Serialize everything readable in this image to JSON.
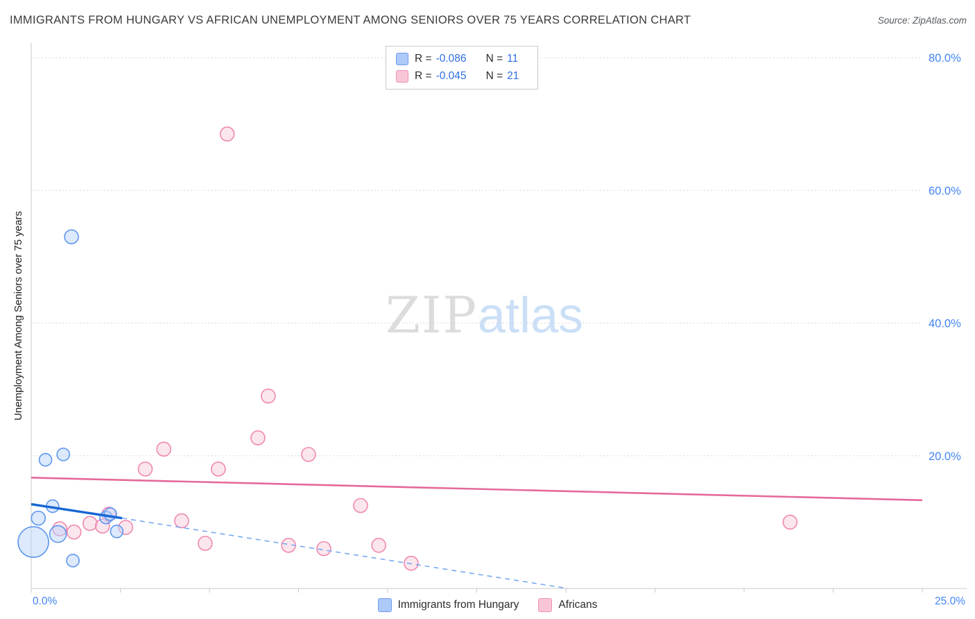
{
  "header": {
    "source": "Source: ZipAtlas.com"
  },
  "watermark": {
    "part1": "ZIP",
    "part2": "atlas"
  },
  "stats_labels": {
    "r": "R =",
    "n": "N ="
  },
  "chart_data": {
    "type": "scatter",
    "title": "IMMIGRANTS FROM HUNGARY VS AFRICAN UNEMPLOYMENT AMONG SENIORS OVER 75 YEARS CORRELATION CHART",
    "xlabel": "",
    "ylabel": "Unemployment Among Seniors over 75 years",
    "xlim": [
      0,
      0.25
    ],
    "ylim": [
      0,
      0.82
    ],
    "grid": true,
    "legend_position": "bottom-center",
    "axis_label_color": "#4285f4",
    "x_tick_labels": [
      "0.0%",
      "25.0%"
    ],
    "y_ticks": [
      0.2,
      0.4,
      0.6,
      0.8
    ],
    "y_tick_labels": [
      "20.0%",
      "40.0%",
      "60.0%",
      "80.0%"
    ],
    "x_minor_tick_count": 11,
    "series": [
      {
        "name": "Africans",
        "r": "-0.045",
        "n": "21",
        "fill": "#f9cddd",
        "stroke": "#ef88b0",
        "trend_color": "#e5699b",
        "points": [
          [
            0.008,
            0.09,
            10
          ],
          [
            0.012,
            0.085,
            10
          ],
          [
            0.0165,
            0.098,
            10
          ],
          [
            0.02,
            0.094,
            10
          ],
          [
            0.0218,
            0.112,
            10
          ],
          [
            0.0265,
            0.092,
            10
          ],
          [
            0.032,
            0.18,
            10
          ],
          [
            0.0372,
            0.21,
            10
          ],
          [
            0.0422,
            0.102,
            10
          ],
          [
            0.0488,
            0.068,
            10
          ],
          [
            0.0525,
            0.18,
            10
          ],
          [
            0.055,
            0.685,
            10
          ],
          [
            0.0636,
            0.227,
            10
          ],
          [
            0.0665,
            0.29,
            10
          ],
          [
            0.0722,
            0.065,
            10
          ],
          [
            0.0778,
            0.202,
            10
          ],
          [
            0.0821,
            0.06,
            10
          ],
          [
            0.0924,
            0.125,
            10
          ],
          [
            0.0975,
            0.065,
            10
          ],
          [
            0.1066,
            0.038,
            10
          ],
          [
            0.2129,
            0.1,
            10
          ]
        ],
        "trend": {
          "x1": 0,
          "y1": 0.167,
          "x2": 0.25,
          "y2": 0.133
        }
      },
      {
        "name": "Immigrants from Hungary",
        "r": "-0.086",
        "n": "11",
        "fill": "#bcd4fa",
        "stroke": "#5e97f0",
        "trend_color": "#1766d4",
        "points": [
          [
            0.0006,
            0.07,
            22
          ],
          [
            0.002,
            0.106,
            10
          ],
          [
            0.004,
            0.194,
            9
          ],
          [
            0.006,
            0.124,
            9
          ],
          [
            0.0075,
            0.082,
            12
          ],
          [
            0.009,
            0.202,
            9
          ],
          [
            0.0113,
            0.53,
            10
          ],
          [
            0.0117,
            0.042,
            9
          ],
          [
            0.021,
            0.107,
            9
          ],
          [
            0.0222,
            0.112,
            9
          ],
          [
            0.024,
            0.086,
            9
          ]
        ],
        "trend": {
          "x1": 0,
          "y1": 0.127,
          "x2": 0.0255,
          "y2": 0.106
        },
        "trend_dashed": {
          "x1": 0.0255,
          "y1": 0.106,
          "x2": 0.1505,
          "y2": 0.0
        }
      }
    ]
  }
}
